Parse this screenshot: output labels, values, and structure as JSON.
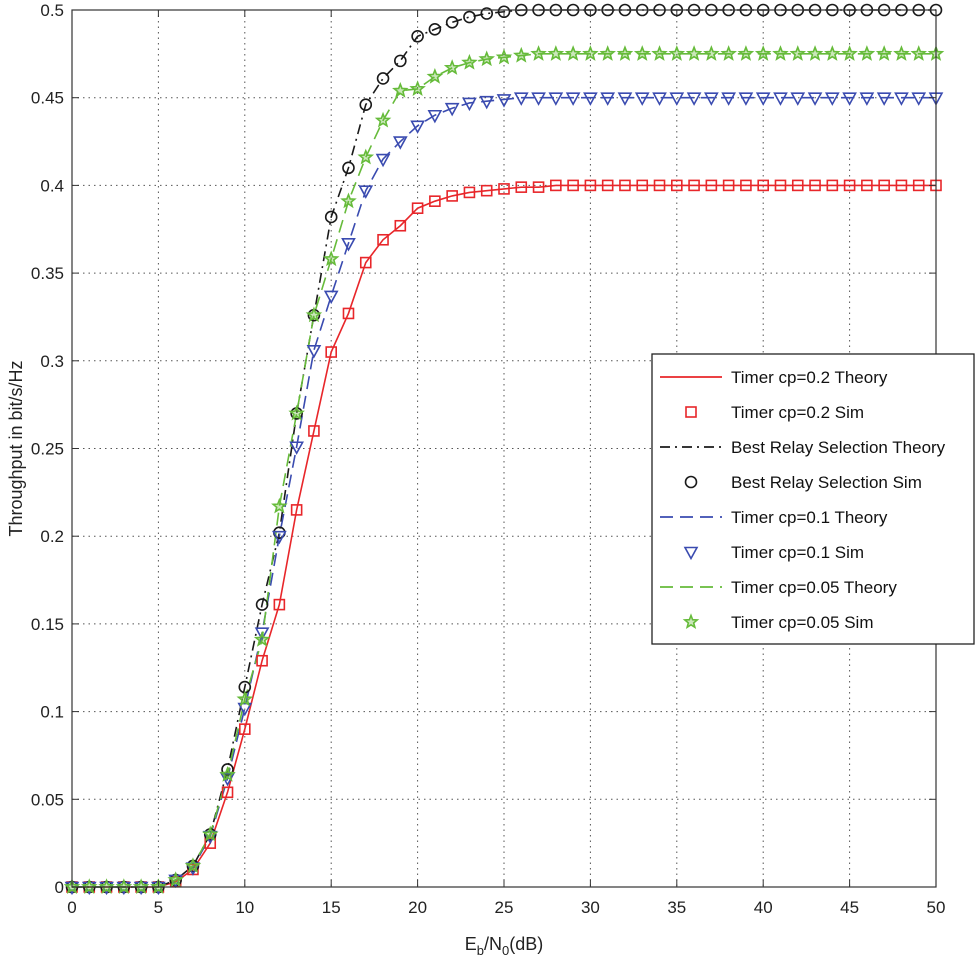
{
  "chart_data": {
    "type": "line",
    "xlabel": "E_b/N_0(dB)",
    "xlabel_parts": {
      "e": "E",
      "b": "b",
      "slash_n": "/N",
      "zero": "0",
      "unit": "(dB)"
    },
    "ylabel": "Throughput in bit/s/Hz",
    "xlim": [
      0,
      50
    ],
    "ylim": [
      0,
      0.5
    ],
    "x_ticks": [
      "0",
      "5",
      "10",
      "15",
      "20",
      "25",
      "30",
      "35",
      "40",
      "45",
      "50"
    ],
    "y_ticks": [
      "0",
      "0.05",
      "0.1",
      "0.15",
      "0.2",
      "0.25",
      "0.3",
      "0.35",
      "0.4",
      "0.45",
      "0.5"
    ],
    "grid": true,
    "legend_position": "right",
    "legend": [
      {
        "label": "Timer cp=0.2 Theory",
        "style": "solid",
        "color": "#e8262a"
      },
      {
        "label": "Timer cp=0.2 Sim",
        "marker": "square",
        "color": "#e8262a"
      },
      {
        "label": "Best Relay Selection Theory",
        "style": "dashdot",
        "color": "#1a1a1a"
      },
      {
        "label": "Best Relay Selection Sim",
        "marker": "circle",
        "color": "#1a1a1a"
      },
      {
        "label": "Timer cp=0.1 Theory",
        "style": "dashed",
        "color": "#3a4bb0"
      },
      {
        "label": "Timer cp=0.1 Sim",
        "marker": "triangle-down",
        "color": "#3a4bb0"
      },
      {
        "label": "Timer cp=0.05 Theory",
        "style": "dashed",
        "color": "#66bb3a"
      },
      {
        "label": "Timer cp=0.05 Sim",
        "marker": "star",
        "color": "#66bb3a"
      }
    ],
    "curves": [
      {
        "label": "Timer cp=0.2",
        "color": "#e8262a",
        "line": "solid",
        "marker": "square",
        "x": [
          0,
          1,
          2,
          3,
          4,
          5,
          6,
          7,
          8,
          9,
          10,
          11,
          12,
          13,
          14,
          15,
          16,
          17,
          18,
          19,
          20,
          21,
          22,
          23,
          24,
          25,
          26,
          27,
          28,
          29,
          30,
          31,
          32,
          33,
          34,
          35,
          36,
          37,
          38,
          39,
          40,
          41,
          42,
          43,
          44,
          45,
          46,
          47,
          48,
          49,
          50
        ],
        "y": [
          0,
          0,
          0,
          0,
          0,
          0,
          0.003,
          0.01,
          0.025,
          0.054,
          0.09,
          0.129,
          0.161,
          0.215,
          0.26,
          0.305,
          0.327,
          0.356,
          0.369,
          0.377,
          0.387,
          0.391,
          0.394,
          0.396,
          0.397,
          0.398,
          0.399,
          0.399,
          0.4,
          0.4,
          0.4,
          0.4,
          0.4,
          0.4,
          0.4,
          0.4,
          0.4,
          0.4,
          0.4,
          0.4,
          0.4,
          0.4,
          0.4,
          0.4,
          0.4,
          0.4,
          0.4,
          0.4,
          0.4,
          0.4,
          0.4
        ]
      },
      {
        "label": "Best Relay Selection",
        "color": "#1a1a1a",
        "line": "dashdot",
        "marker": "circle",
        "x": [
          0,
          1,
          2,
          3,
          4,
          5,
          6,
          7,
          8,
          9,
          10,
          11,
          12,
          13,
          14,
          15,
          16,
          17,
          18,
          19,
          20,
          21,
          22,
          23,
          24,
          25,
          26,
          27,
          28,
          29,
          30,
          31,
          32,
          33,
          34,
          35,
          36,
          37,
          38,
          39,
          40,
          41,
          42,
          43,
          44,
          45,
          46,
          47,
          48,
          49,
          50
        ],
        "y": [
          0,
          0,
          0,
          0,
          0,
          0,
          0.004,
          0.012,
          0.03,
          0.067,
          0.114,
          0.161,
          0.202,
          0.27,
          0.326,
          0.382,
          0.41,
          0.446,
          0.461,
          0.471,
          0.485,
          0.489,
          0.493,
          0.496,
          0.498,
          0.499,
          0.5,
          0.5,
          0.5,
          0.5,
          0.5,
          0.5,
          0.5,
          0.5,
          0.5,
          0.5,
          0.5,
          0.5,
          0.5,
          0.5,
          0.5,
          0.5,
          0.5,
          0.5,
          0.5,
          0.5,
          0.5,
          0.5,
          0.5,
          0.5,
          0.5
        ]
      },
      {
        "label": "Timer cp=0.1",
        "color": "#3a4bb0",
        "line": "dashed",
        "marker": "triangle-down",
        "x": [
          0,
          1,
          2,
          3,
          4,
          5,
          6,
          7,
          8,
          9,
          10,
          11,
          12,
          13,
          14,
          15,
          16,
          17,
          18,
          19,
          20,
          21,
          22,
          23,
          24,
          25,
          26,
          27,
          28,
          29,
          30,
          31,
          32,
          33,
          34,
          35,
          36,
          37,
          38,
          39,
          40,
          41,
          42,
          43,
          44,
          45,
          46,
          47,
          48,
          49,
          50
        ],
        "y": [
          0,
          0,
          0,
          0,
          0,
          0,
          0.004,
          0.011,
          0.029,
          0.062,
          0.102,
          0.145,
          0.2,
          0.251,
          0.306,
          0.337,
          0.367,
          0.397,
          0.415,
          0.425,
          0.434,
          0.44,
          0.444,
          0.447,
          0.448,
          0.449,
          0.45,
          0.45,
          0.45,
          0.45,
          0.45,
          0.45,
          0.45,
          0.45,
          0.45,
          0.45,
          0.45,
          0.45,
          0.45,
          0.45,
          0.45,
          0.45,
          0.45,
          0.45,
          0.45,
          0.45,
          0.45,
          0.45,
          0.45,
          0.45,
          0.45
        ]
      },
      {
        "label": "Timer cp=0.05",
        "color": "#66bb3a",
        "line": "dashed",
        "marker": "star",
        "x": [
          0,
          1,
          2,
          3,
          4,
          5,
          6,
          7,
          8,
          9,
          10,
          11,
          12,
          13,
          14,
          15,
          16,
          17,
          18,
          19,
          20,
          21,
          22,
          23,
          24,
          25,
          26,
          27,
          28,
          29,
          30,
          31,
          32,
          33,
          34,
          35,
          36,
          37,
          38,
          39,
          40,
          41,
          42,
          43,
          44,
          45,
          46,
          47,
          48,
          49,
          50
        ],
        "y": [
          0,
          0,
          0,
          0,
          0,
          0,
          0.004,
          0.012,
          0.03,
          0.064,
          0.107,
          0.141,
          0.217,
          0.27,
          0.326,
          0.358,
          0.391,
          0.416,
          0.437,
          0.454,
          0.455,
          0.462,
          0.467,
          0.47,
          0.472,
          0.473,
          0.474,
          0.475,
          0.475,
          0.475,
          0.475,
          0.475,
          0.475,
          0.475,
          0.475,
          0.475,
          0.475,
          0.475,
          0.475,
          0.475,
          0.475,
          0.475,
          0.475,
          0.475,
          0.475,
          0.475,
          0.475,
          0.475,
          0.475,
          0.475,
          0.475
        ]
      }
    ]
  }
}
